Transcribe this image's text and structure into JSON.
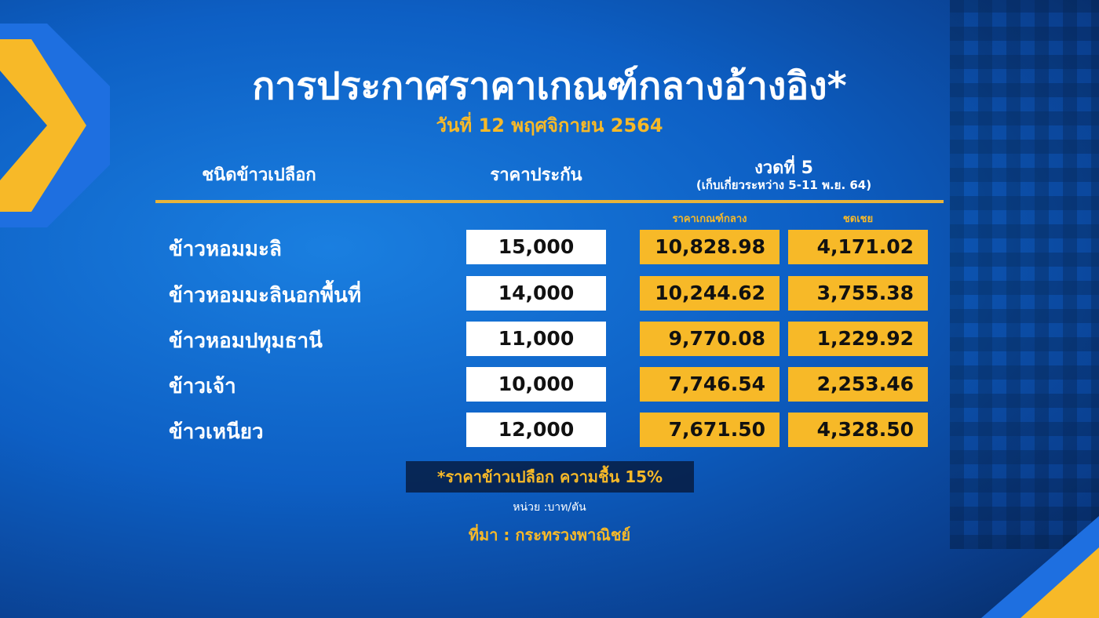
{
  "title": "การประกาศราคาเกณฑ์กลางอ้างอิง*",
  "date": "วันที่ 12 พฤศจิกายน 2564",
  "headers": {
    "rice_type": "ชนิดข้าวเปลือก",
    "guaranteed_price": "ราคาประกัน",
    "round": "งวดที่ 5",
    "round_period": "(เก็บเกี่ยวระหว่าง 5-11 พ.ย. 64)",
    "reference_price": "ราคาเกณฑ์กลาง",
    "compensation": "ชดเชย"
  },
  "rows": [
    {
      "name": "ข้าวหอมมะลิ",
      "guaranteed": "15,000",
      "reference": "10,828.98",
      "compensation": "4,171.02"
    },
    {
      "name": "ข้าวหอมมะลินอกพื้นที่",
      "guaranteed": "14,000",
      "reference": "10,244.62",
      "compensation": "3,755.38"
    },
    {
      "name": "ข้าวหอมปทุมธานี",
      "guaranteed": "11,000",
      "reference": "9,770.08",
      "compensation": "1,229.92"
    },
    {
      "name": "ข้าวเจ้า",
      "guaranteed": "10,000",
      "reference": "7,746.54",
      "compensation": "2,253.46"
    },
    {
      "name": "ข้าวเหนียว",
      "guaranteed": "12,000",
      "reference": "7,671.50",
      "compensation": "4,328.50"
    }
  ],
  "footnote": "*ราคาข้าวเปลือก ความชื้น 15%",
  "unit": "หน่วย :บาท/ตัน",
  "source": "ที่มา : กระทรวงพาณิชย์",
  "colors": {
    "accent": "#f7b928",
    "background": "#0d5fc4"
  }
}
